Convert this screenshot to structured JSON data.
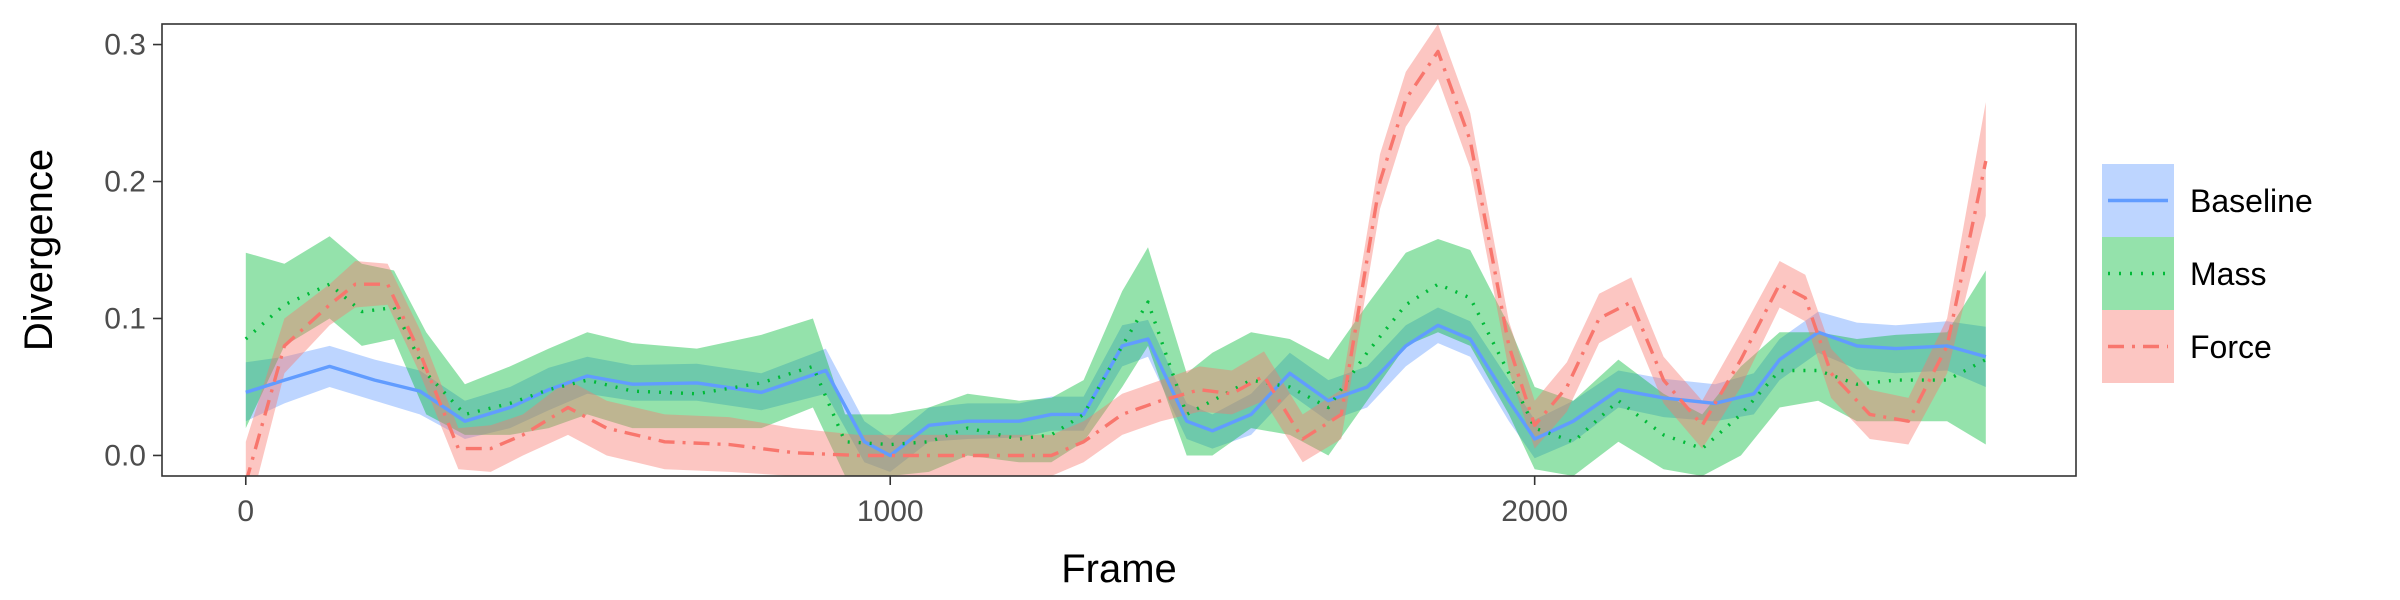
{
  "chart_data": {
    "type": "line",
    "xlabel": "Frame",
    "ylabel": "Divergence",
    "xlim": [
      -130,
      2840
    ],
    "ylim": [
      -0.015,
      0.315
    ],
    "xticks": [
      0,
      1000,
      2000
    ],
    "xtick_labels": [
      "0",
      "1000",
      "2000"
    ],
    "yticks": [
      0.0,
      0.1,
      0.2,
      0.3
    ],
    "ytick_labels": [
      "0.0",
      "0.1",
      "0.2",
      "0.3"
    ],
    "grid": false,
    "legend_position": "right",
    "series": [
      {
        "name": "Baseline",
        "color": "#619CFF",
        "line_style": "solid",
        "x": [
          0,
          60,
          130,
          200,
          270,
          340,
          410,
          470,
          530,
          600,
          700,
          800,
          900,
          960,
          1000,
          1060,
          1120,
          1200,
          1250,
          1300,
          1360,
          1400,
          1460,
          1500,
          1560,
          1620,
          1680,
          1740,
          1800,
          1850,
          1900,
          1960,
          2000,
          2060,
          2130,
          2200,
          2280,
          2340,
          2380,
          2440,
          2500,
          2560,
          2640,
          2700
        ],
        "y": [
          0.046,
          0.055,
          0.065,
          0.055,
          0.047,
          0.025,
          0.035,
          0.048,
          0.058,
          0.052,
          0.053,
          0.046,
          0.062,
          0.01,
          0.0,
          0.022,
          0.025,
          0.025,
          0.03,
          0.03,
          0.08,
          0.085,
          0.025,
          0.018,
          0.03,
          0.06,
          0.04,
          0.05,
          0.08,
          0.095,
          0.085,
          0.04,
          0.012,
          0.025,
          0.048,
          0.042,
          0.038,
          0.045,
          0.07,
          0.09,
          0.08,
          0.078,
          0.08,
          0.072
        ],
        "lower": [
          0.025,
          0.038,
          0.05,
          0.04,
          0.03,
          0.012,
          0.02,
          0.033,
          0.045,
          0.04,
          0.04,
          0.033,
          0.045,
          -0.005,
          -0.012,
          0.01,
          0.012,
          0.013,
          0.018,
          0.018,
          0.065,
          0.072,
          0.012,
          0.005,
          0.015,
          0.045,
          0.025,
          0.035,
          0.065,
          0.082,
          0.072,
          0.025,
          -0.002,
          0.01,
          0.035,
          0.028,
          0.025,
          0.03,
          0.055,
          0.075,
          0.063,
          0.06,
          0.062,
          0.05
        ],
        "upper": [
          0.068,
          0.072,
          0.08,
          0.07,
          0.062,
          0.04,
          0.05,
          0.064,
          0.072,
          0.066,
          0.067,
          0.06,
          0.078,
          0.025,
          0.012,
          0.035,
          0.038,
          0.038,
          0.043,
          0.043,
          0.095,
          0.099,
          0.038,
          0.03,
          0.045,
          0.075,
          0.055,
          0.065,
          0.095,
          0.108,
          0.098,
          0.055,
          0.026,
          0.04,
          0.062,
          0.056,
          0.052,
          0.06,
          0.085,
          0.105,
          0.097,
          0.095,
          0.098,
          0.094
        ]
      },
      {
        "name": "Mass",
        "color": "#00BA38",
        "line_style": "dotted",
        "x": [
          0,
          60,
          130,
          180,
          230,
          280,
          340,
          410,
          470,
          530,
          600,
          700,
          800,
          880,
          930,
          1000,
          1060,
          1120,
          1200,
          1250,
          1300,
          1360,
          1400,
          1460,
          1500,
          1560,
          1620,
          1680,
          1740,
          1800,
          1850,
          1900,
          1960,
          2000,
          2060,
          2130,
          2200,
          2260,
          2320,
          2380,
          2440,
          2500,
          2560,
          2640,
          2700
        ],
        "y": [
          0.085,
          0.11,
          0.125,
          0.105,
          0.108,
          0.06,
          0.03,
          0.038,
          0.048,
          0.055,
          0.047,
          0.045,
          0.053,
          0.065,
          0.01,
          0.008,
          0.01,
          0.02,
          0.012,
          0.015,
          0.03,
          0.08,
          0.112,
          0.03,
          0.04,
          0.055,
          0.05,
          0.035,
          0.075,
          0.11,
          0.125,
          0.115,
          0.06,
          0.02,
          0.01,
          0.04,
          0.015,
          0.005,
          0.03,
          0.062,
          0.062,
          0.052,
          0.055,
          0.055,
          0.07
        ],
        "lower": [
          0.02,
          0.08,
          0.1,
          0.08,
          0.085,
          0.03,
          0.015,
          0.015,
          0.02,
          0.03,
          0.02,
          0.02,
          0.02,
          0.035,
          -0.015,
          -0.015,
          -0.012,
          0.0,
          -0.005,
          -0.005,
          0.01,
          0.05,
          0.08,
          0.0,
          0.0,
          0.02,
          0.015,
          0.0,
          0.04,
          0.08,
          0.09,
          0.08,
          0.03,
          -0.01,
          -0.015,
          0.01,
          -0.01,
          -0.015,
          0.0,
          0.035,
          0.04,
          0.025,
          0.025,
          0.025,
          0.008
        ],
        "upper": [
          0.148,
          0.14,
          0.16,
          0.14,
          0.135,
          0.09,
          0.052,
          0.065,
          0.078,
          0.09,
          0.082,
          0.078,
          0.088,
          0.1,
          0.03,
          0.03,
          0.035,
          0.045,
          0.04,
          0.042,
          0.055,
          0.12,
          0.152,
          0.06,
          0.075,
          0.09,
          0.085,
          0.07,
          0.11,
          0.148,
          0.158,
          0.15,
          0.095,
          0.05,
          0.04,
          0.07,
          0.045,
          0.03,
          0.065,
          0.09,
          0.09,
          0.085,
          0.088,
          0.09,
          0.135
        ]
      },
      {
        "name": "Force",
        "color": "#F8766D",
        "line_style": "dashdot",
        "x": [
          0,
          60,
          130,
          170,
          220,
          270,
          330,
          380,
          430,
          500,
          560,
          650,
          750,
          850,
          950,
          1050,
          1150,
          1250,
          1300,
          1360,
          1420,
          1480,
          1530,
          1580,
          1640,
          1700,
          1760,
          1800,
          1850,
          1900,
          1960,
          2000,
          2050,
          2100,
          2150,
          2200,
          2260,
          2320,
          2380,
          2420,
          2460,
          2520,
          2580,
          2640,
          2700
        ],
        "y": [
          -0.02,
          0.08,
          0.11,
          0.125,
          0.125,
          0.075,
          0.005,
          0.005,
          0.015,
          0.035,
          0.02,
          0.01,
          0.008,
          0.002,
          0.0,
          0.0,
          0.0,
          0.0,
          0.01,
          0.03,
          0.04,
          0.048,
          0.045,
          0.058,
          0.012,
          0.03,
          0.2,
          0.26,
          0.295,
          0.23,
          0.08,
          0.022,
          0.05,
          0.1,
          0.112,
          0.055,
          0.022,
          0.07,
          0.125,
          0.115,
          0.06,
          0.03,
          0.025,
          0.08,
          0.215
        ],
        "lower": [
          -0.05,
          0.06,
          0.095,
          0.108,
          0.11,
          0.06,
          -0.01,
          -0.012,
          0.0,
          0.015,
          0.0,
          -0.01,
          -0.012,
          -0.015,
          -0.015,
          -0.015,
          -0.015,
          -0.015,
          -0.005,
          0.015,
          0.025,
          0.032,
          0.03,
          0.04,
          -0.005,
          0.012,
          0.18,
          0.24,
          0.275,
          0.21,
          0.062,
          0.005,
          0.032,
          0.082,
          0.095,
          0.038,
          0.005,
          0.05,
          0.108,
          0.098,
          0.042,
          0.012,
          0.008,
          0.06,
          0.175
        ],
        "upper": [
          0.01,
          0.1,
          0.125,
          0.142,
          0.14,
          0.092,
          0.02,
          0.022,
          0.03,
          0.055,
          0.04,
          0.03,
          0.028,
          0.02,
          0.015,
          0.015,
          0.015,
          0.015,
          0.025,
          0.045,
          0.055,
          0.065,
          0.062,
          0.076,
          0.03,
          0.048,
          0.22,
          0.28,
          0.315,
          0.25,
          0.098,
          0.04,
          0.068,
          0.118,
          0.13,
          0.072,
          0.04,
          0.09,
          0.142,
          0.132,
          0.078,
          0.048,
          0.042,
          0.1,
          0.258
        ]
      }
    ]
  }
}
